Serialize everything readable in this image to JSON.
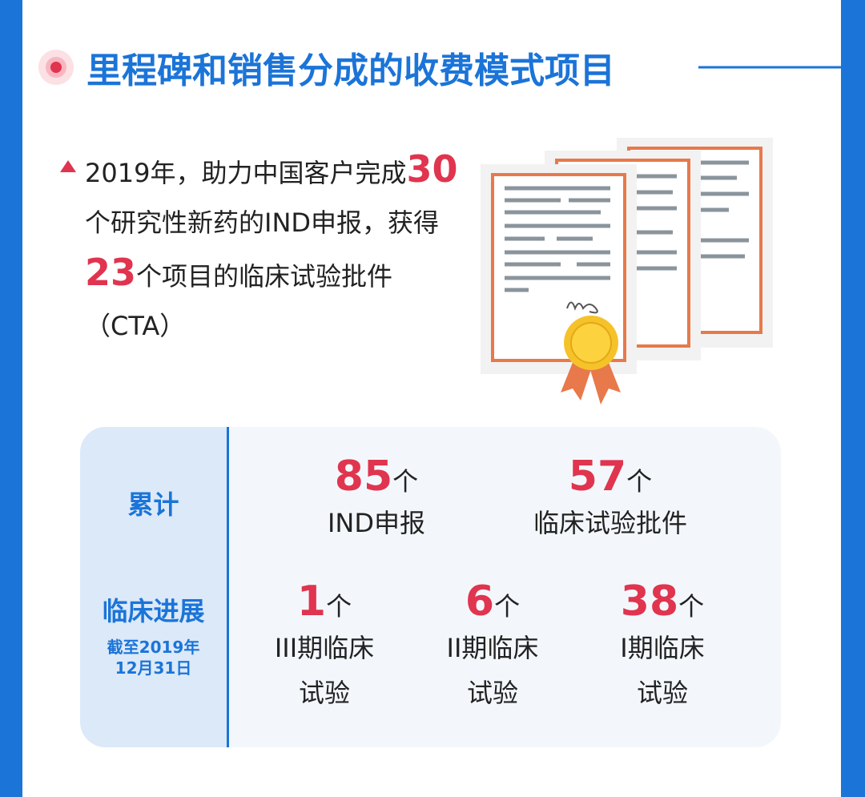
{
  "header": {
    "title": "里程碑和销售分成的收费模式项目"
  },
  "summary": {
    "text_1": "2019年，助力中国客户完成",
    "number_1": 30,
    "text_2": "个研究性新药的IND申报，获得",
    "number_2": 23,
    "text_3": "个项目的临床试验批件（CTA）"
  },
  "table": {
    "cumulative": {
      "label": "累计",
      "items": [
        {
          "value": 85,
          "unit": "个",
          "label": [
            "IND申报"
          ]
        },
        {
          "value": 57,
          "unit": "个",
          "label": [
            "临床试验批件"
          ]
        }
      ]
    },
    "clinical": {
      "label": "临床进展",
      "note": [
        "截至2019年",
        "12月31日"
      ],
      "items": [
        {
          "value": 1,
          "unit": "个",
          "label": [
            "III期临床",
            "试验"
          ]
        },
        {
          "value": 6,
          "unit": "个",
          "label": [
            "II期临床",
            "试验"
          ]
        },
        {
          "value": 38,
          "unit": "个",
          "label": [
            "I期临床",
            "试验"
          ]
        }
      ]
    }
  }
}
